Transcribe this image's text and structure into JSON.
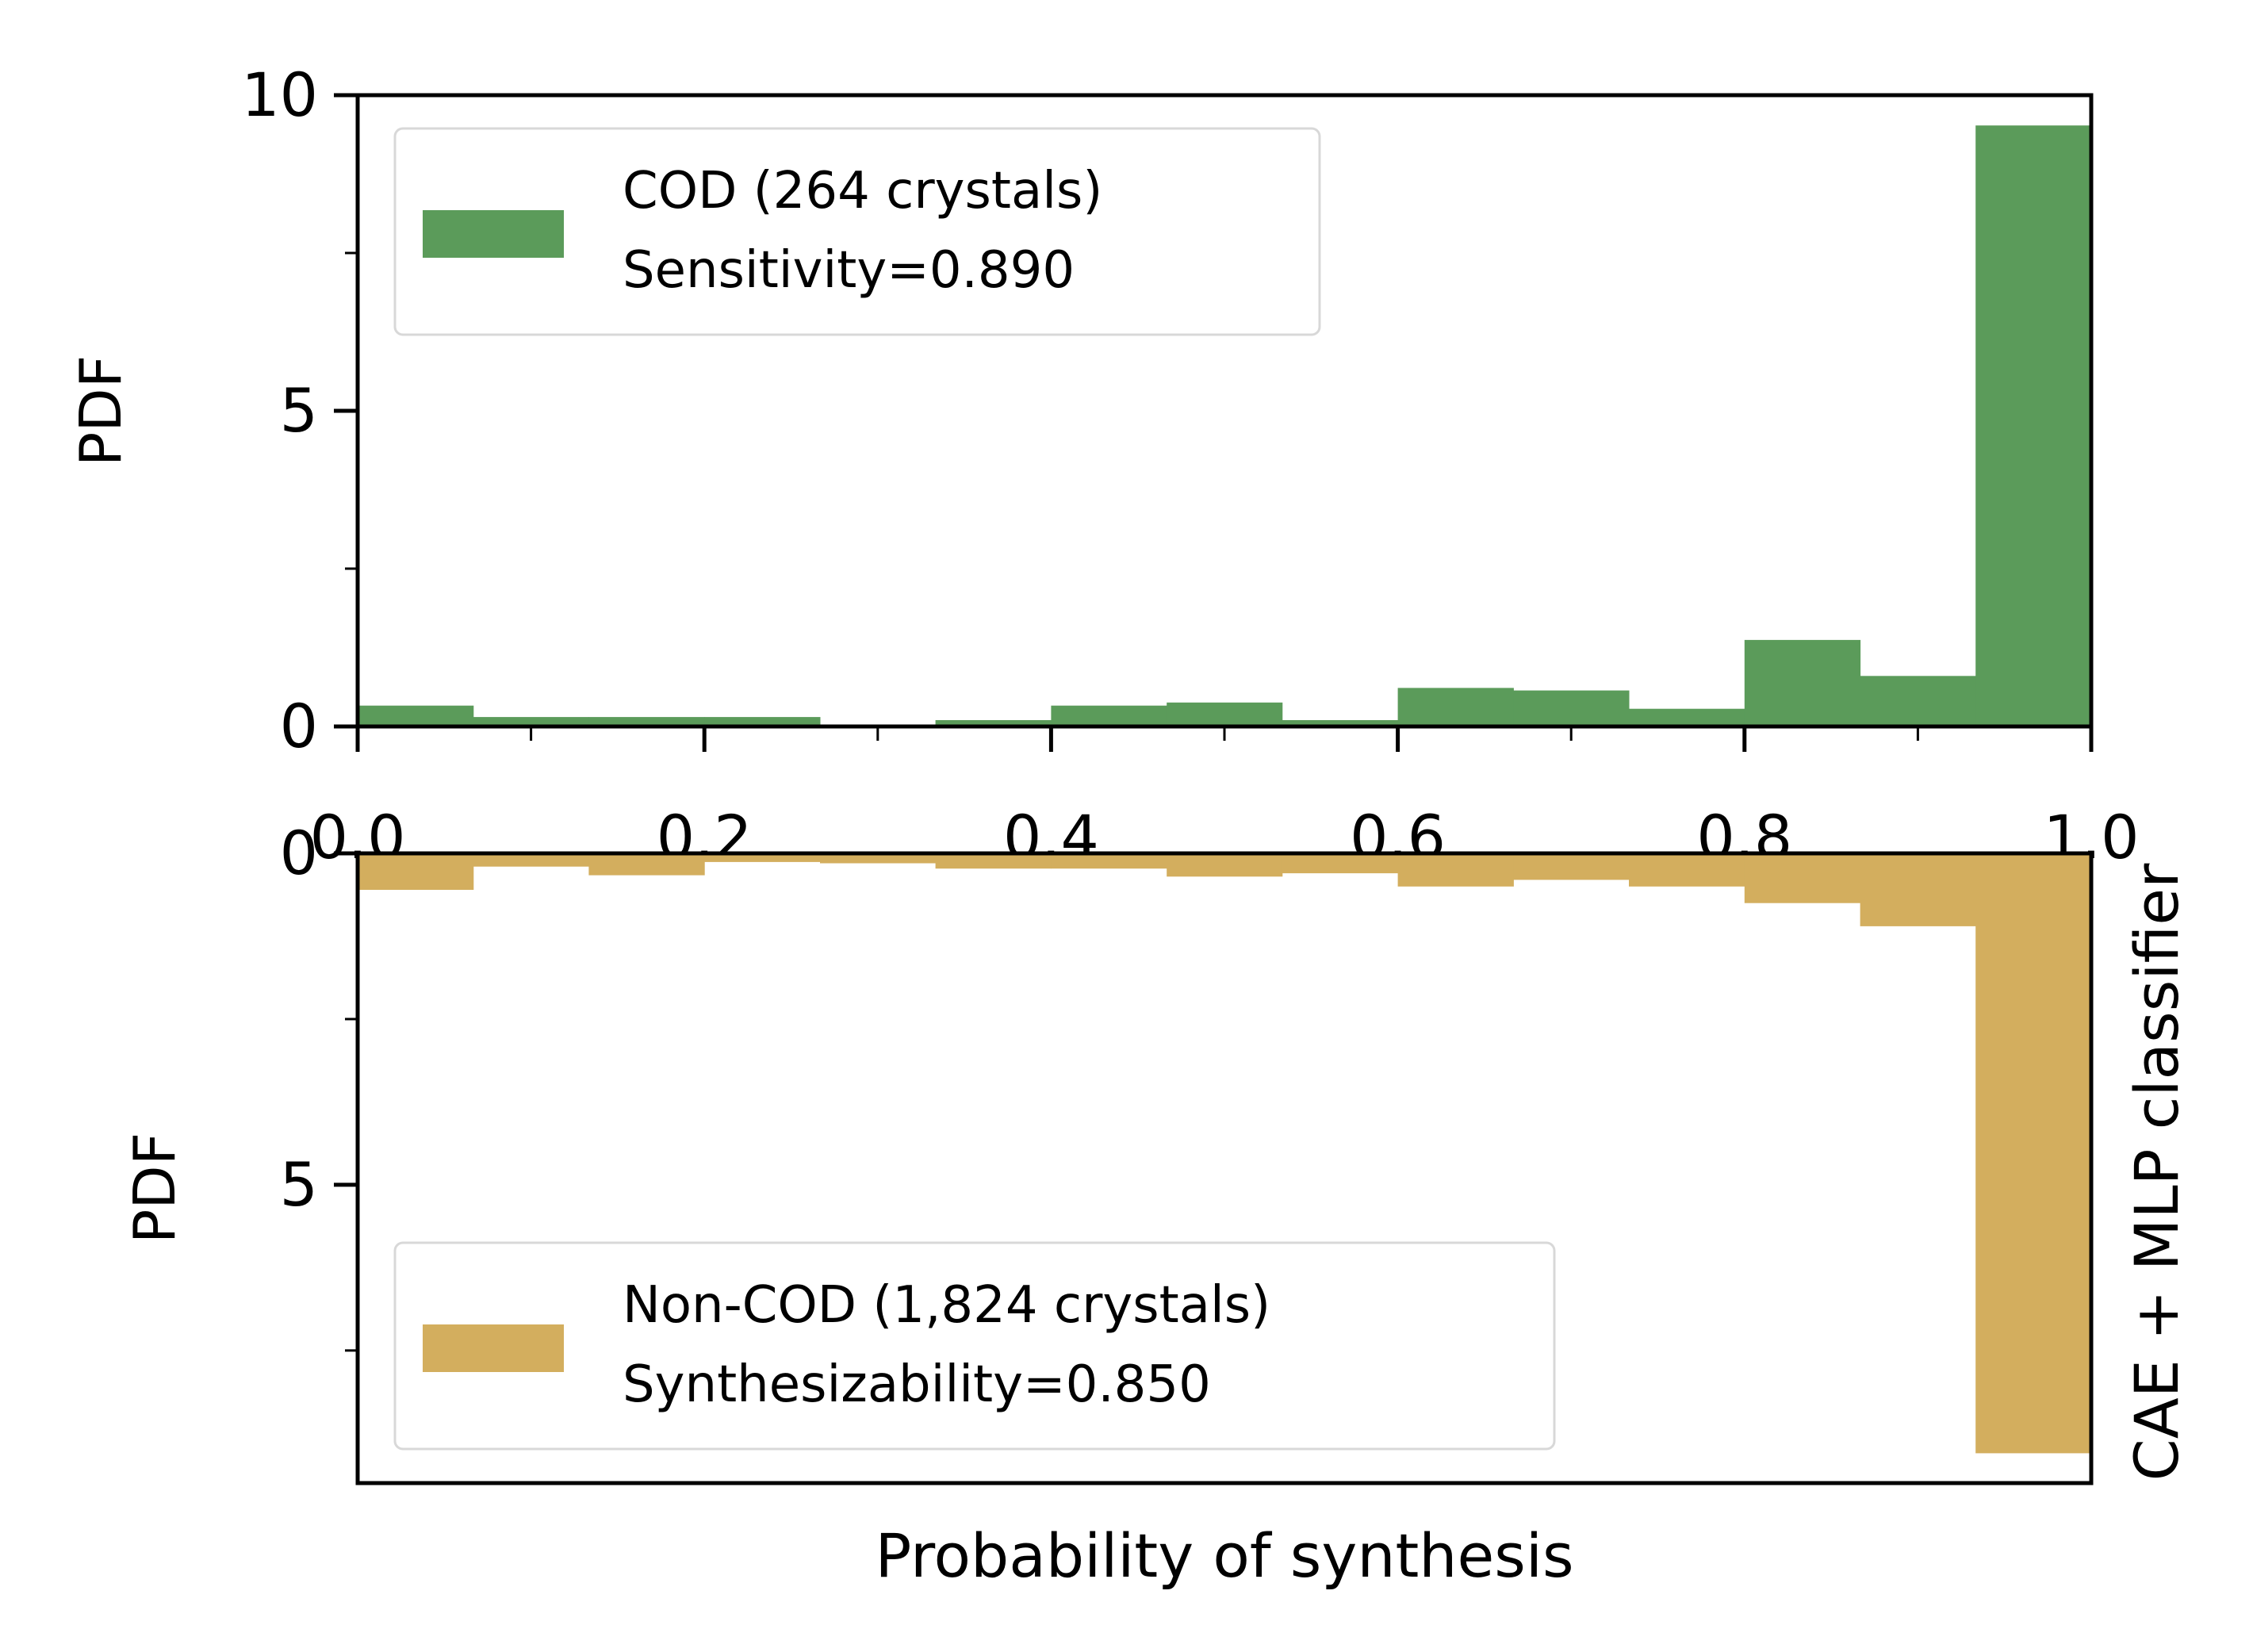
{
  "figure": {
    "xlabel": "Probability of synthesis",
    "side_label": "CAE + MLP classifier"
  },
  "chart_data": [
    {
      "type": "bar",
      "panel": "top",
      "ylabel": "PDF",
      "xlim": [
        0.0,
        1.0
      ],
      "ylim": [
        0,
        10
      ],
      "xticks": [
        "0.0",
        "0.2",
        "0.4",
        "0.6",
        "0.8",
        "1.0"
      ],
      "yticks": [
        "0",
        "5",
        "10"
      ],
      "bin_edges": [
        0.0,
        0.0667,
        0.1333,
        0.2,
        0.2667,
        0.3333,
        0.4,
        0.4667,
        0.5333,
        0.6,
        0.6667,
        0.7333,
        0.8,
        0.8667,
        0.9333,
        1.0
      ],
      "series": [
        {
          "name": "COD (264 crystals)",
          "color": "#5b9b5a",
          "values": [
            0.33,
            0.15,
            0.15,
            0.15,
            0.0,
            0.1,
            0.33,
            0.38,
            0.1,
            0.61,
            0.57,
            0.28,
            1.37,
            0.8,
            9.52
          ]
        }
      ],
      "legend": {
        "position": "upper-left",
        "lines": [
          "COD (264 crystals)",
          "Sensitivity=0.890"
        ]
      },
      "grid": false
    },
    {
      "type": "bar",
      "panel": "bottom",
      "ylabel": "PDF",
      "xlim": [
        0.0,
        1.0
      ],
      "ylim": [
        0,
        9.5
      ],
      "inverted_y": true,
      "yticks": [
        "0",
        "5"
      ],
      "bin_edges": [
        0.0,
        0.0667,
        0.1333,
        0.2,
        0.2667,
        0.3333,
        0.4,
        0.4667,
        0.5333,
        0.6,
        0.6667,
        0.7333,
        0.8,
        0.8667,
        0.9333,
        1.0
      ],
      "series": [
        {
          "name": "Non-COD (1,824 crystals)",
          "color": "#d3ae5e",
          "values": [
            0.55,
            0.2,
            0.33,
            0.13,
            0.15,
            0.23,
            0.23,
            0.35,
            0.3,
            0.5,
            0.4,
            0.5,
            0.75,
            1.1,
            9.05
          ]
        }
      ],
      "legend": {
        "position": "lower-left",
        "lines": [
          "Non-COD (1,824 crystals)",
          "Synthesizability=0.850"
        ]
      },
      "grid": false
    }
  ]
}
